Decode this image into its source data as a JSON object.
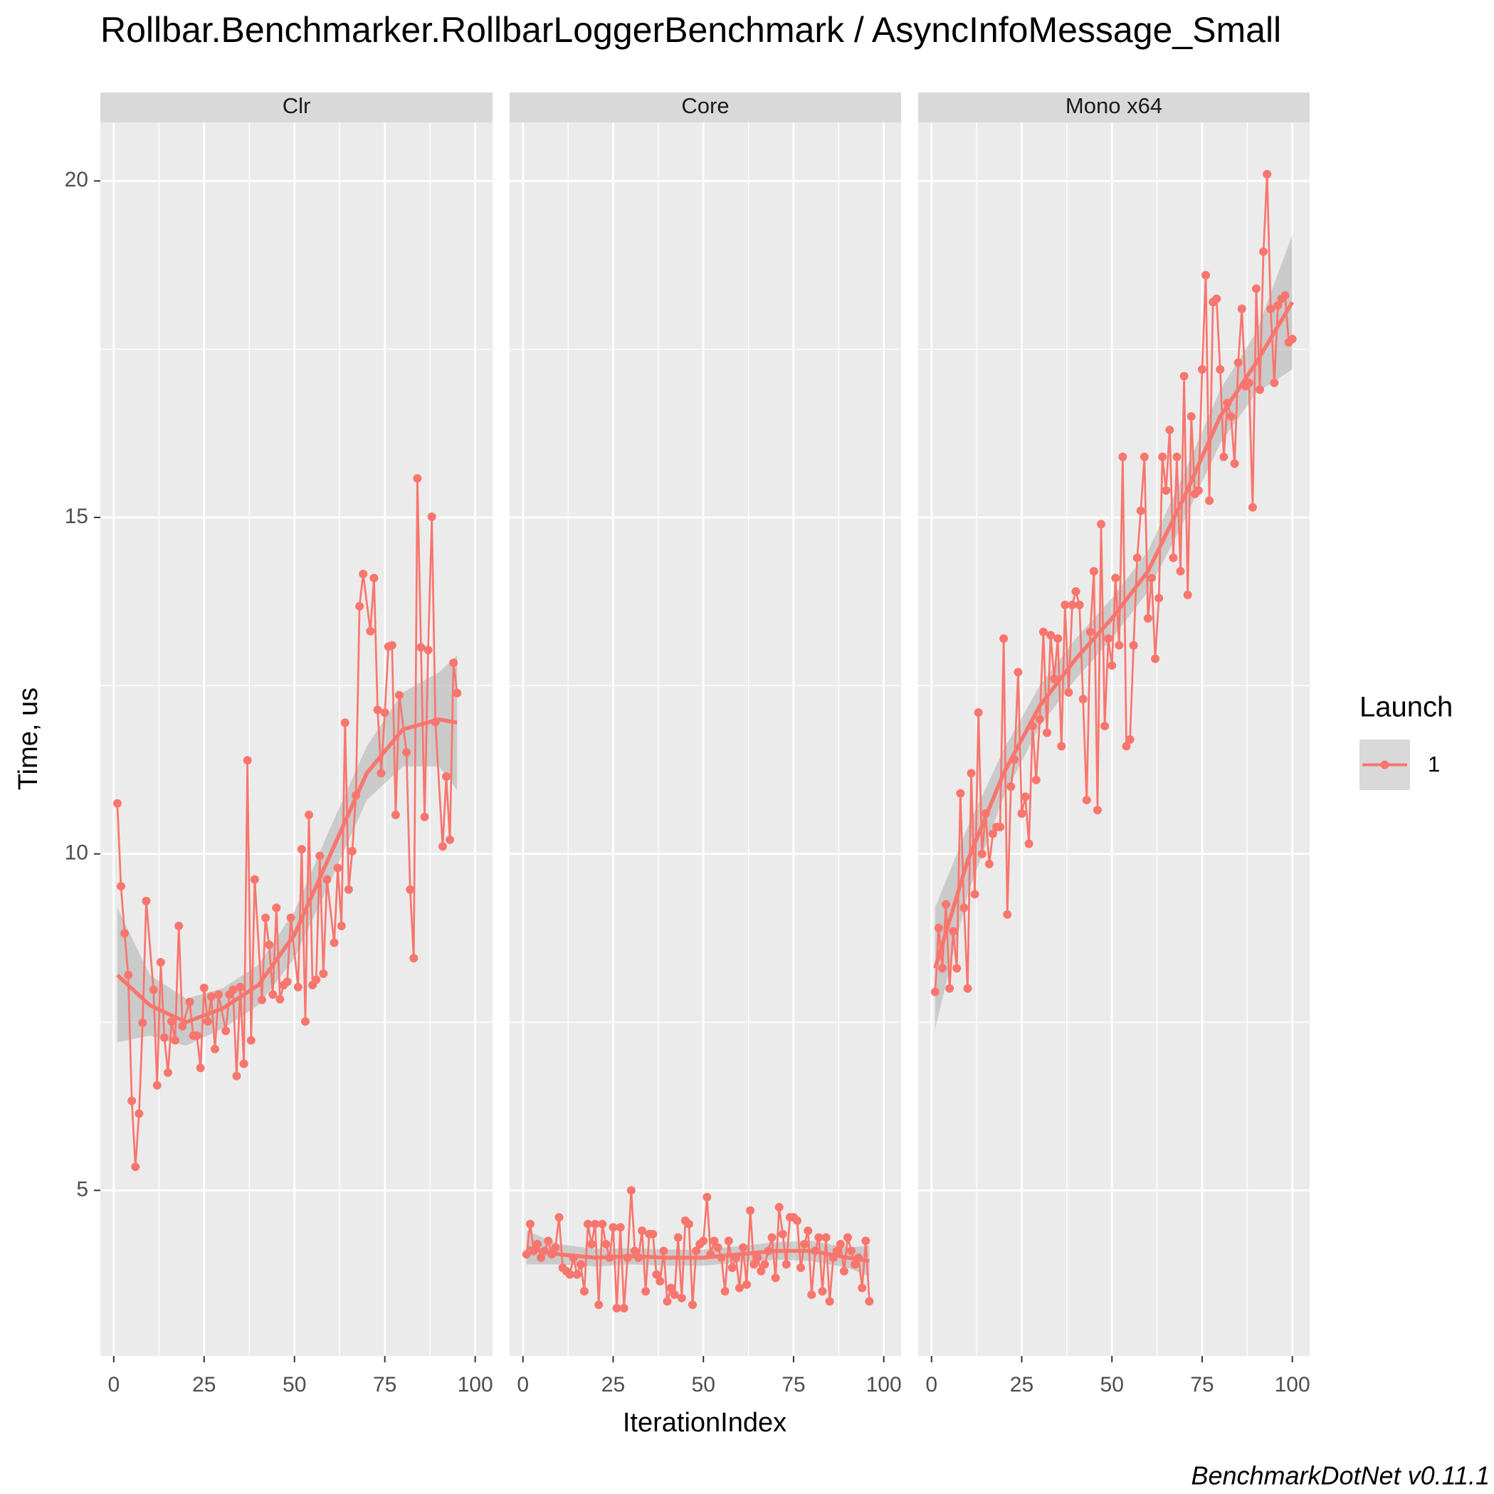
{
  "chart_data": {
    "type": "line",
    "title": "Rollbar.Benchmarker.RollbarLoggerBenchmark / AsyncInfoMessage_Small",
    "x_label": "IterationIndex",
    "y_label": "Time, us",
    "legend_title": "Launch",
    "series_name": "1",
    "caption": "BenchmarkDotNet v0.11.1",
    "color": "#f8766d",
    "band_color": "#999999",
    "grid": true,
    "xlim": [
      -3.7,
      104.8
    ],
    "xticks": [
      0,
      25,
      50,
      75,
      100
    ],
    "minor_xticks": [
      12.5,
      37.5,
      62.5,
      87.5
    ],
    "ylim": [
      2.54,
      20.87
    ],
    "yticks": [
      5,
      10,
      15,
      20
    ],
    "minor_yticks": [
      7.5,
      12.5,
      17.5
    ],
    "facets": [
      {
        "name": "Clr",
        "x": [
          1,
          2,
          3,
          4,
          5,
          6,
          7,
          8,
          9,
          11,
          12,
          13,
          14,
          15,
          16,
          17,
          18,
          19,
          21,
          22,
          23,
          24,
          25,
          26,
          27,
          28,
          29,
          31,
          32,
          33,
          34,
          35,
          36,
          37,
          38,
          39,
          41,
          42,
          43,
          44,
          45,
          46,
          47,
          48,
          49,
          51,
          52,
          53,
          54,
          55,
          56,
          57,
          58,
          59,
          61,
          62,
          63,
          64,
          65,
          66,
          67,
          68,
          69,
          71,
          72,
          73,
          74,
          75,
          76,
          77,
          78,
          79,
          81,
          82,
          83,
          84,
          85,
          86,
          87,
          88,
          89,
          91,
          92,
          93,
          94,
          95
        ],
        "values": [
          10.75,
          9.52,
          8.82,
          8.2,
          6.33,
          5.35,
          6.14,
          7.49,
          9.3,
          7.98,
          6.56,
          8.39,
          7.27,
          6.75,
          7.51,
          7.23,
          8.93,
          7.44,
          7.8,
          7.3,
          7.3,
          6.82,
          8.01,
          7.51,
          7.88,
          7.1,
          7.91,
          7.37,
          7.91,
          7.98,
          6.7,
          8.02,
          6.88,
          11.39,
          7.23,
          9.62,
          7.83,
          9.05,
          8.65,
          7.91,
          9.2,
          7.84,
          8.05,
          8.1,
          9.05,
          8.02,
          10.07,
          7.51,
          10.58,
          8.05,
          8.13,
          9.97,
          8.22,
          9.62,
          8.68,
          9.79,
          8.93,
          11.95,
          9.47,
          10.04,
          10.87,
          13.68,
          14.16,
          13.31,
          14.1,
          12.14,
          11.2,
          12.1,
          13.08,
          13.1,
          10.58,
          12.36,
          11.51,
          9.47,
          8.45,
          15.58,
          13.07,
          10.55,
          13.03,
          15.01,
          11.96,
          10.11,
          11.15,
          10.21,
          12.84,
          12.39
        ],
        "smooth": {
          "x": [
            1,
            10,
            20,
            30,
            40,
            50,
            60,
            70,
            80,
            90,
            95
          ],
          "values": [
            8.2,
            7.75,
            7.5,
            7.7,
            8.05,
            8.8,
            10.0,
            11.2,
            11.85,
            12.0,
            11.95
          ],
          "lower": [
            7.2,
            7.3,
            7.15,
            7.4,
            7.75,
            8.45,
            9.6,
            10.8,
            11.3,
            11.3,
            10.95
          ],
          "upper": [
            9.2,
            8.2,
            7.85,
            8.0,
            8.35,
            9.15,
            10.4,
            11.6,
            12.4,
            12.7,
            12.95
          ]
        }
      },
      {
        "name": "Core",
        "x": [
          1,
          2,
          3,
          4,
          5,
          6,
          7,
          8,
          9,
          10,
          11,
          12,
          13,
          14,
          15,
          16,
          17,
          18,
          19,
          20,
          21,
          22,
          23,
          24,
          25,
          26,
          27,
          28,
          29,
          30,
          31,
          32,
          33,
          34,
          35,
          36,
          37,
          38,
          39,
          40,
          41,
          42,
          43,
          44,
          45,
          46,
          47,
          48,
          49,
          50,
          51,
          52,
          53,
          54,
          55,
          56,
          57,
          58,
          59,
          60,
          61,
          62,
          63,
          64,
          65,
          66,
          67,
          68,
          69,
          70,
          71,
          72,
          73,
          74,
          75,
          76,
          77,
          78,
          79,
          80,
          81,
          82,
          83,
          84,
          85,
          86,
          87,
          88,
          89,
          90,
          91,
          92,
          93,
          94,
          95,
          96
        ],
        "values": [
          4.05,
          4.5,
          4.1,
          4.2,
          4.0,
          4.1,
          4.25,
          4.05,
          4.15,
          4.6,
          3.85,
          3.8,
          3.75,
          4.0,
          3.75,
          3.9,
          3.5,
          4.5,
          4.2,
          4.5,
          3.3,
          4.5,
          4.2,
          4.0,
          4.45,
          3.25,
          4.45,
          3.25,
          4.0,
          5.0,
          4.1,
          4.0,
          4.4,
          3.5,
          4.35,
          4.35,
          3.75,
          3.65,
          4.1,
          3.35,
          3.55,
          3.45,
          4.3,
          3.4,
          4.55,
          4.5,
          3.3,
          4.1,
          4.2,
          4.25,
          4.9,
          4.05,
          4.25,
          4.15,
          4.0,
          3.5,
          4.25,
          3.85,
          4.0,
          3.55,
          4.15,
          3.6,
          4.7,
          3.9,
          4.0,
          3.8,
          3.9,
          4.1,
          4.3,
          3.7,
          4.75,
          4.35,
          3.9,
          4.6,
          4.6,
          4.55,
          3.85,
          4.2,
          4.4,
          3.45,
          4.1,
          4.3,
          3.5,
          4.3,
          3.35,
          4.0,
          4.1,
          4.2,
          3.8,
          4.3,
          4.1,
          3.9,
          4.0,
          3.55,
          4.25,
          3.35
        ],
        "smooth": {
          "x": [
            1,
            10,
            20,
            30,
            40,
            50,
            60,
            70,
            80,
            90,
            96
          ],
          "values": [
            4.15,
            4.05,
            4.0,
            4.02,
            4.0,
            4.0,
            4.05,
            4.1,
            4.1,
            4.0,
            3.95
          ],
          "lower": [
            3.9,
            3.9,
            3.87,
            3.9,
            3.88,
            3.88,
            3.93,
            3.97,
            3.95,
            3.85,
            3.72
          ],
          "upper": [
            4.4,
            4.2,
            4.13,
            4.14,
            4.12,
            4.12,
            4.17,
            4.23,
            4.25,
            4.15,
            4.18
          ]
        }
      },
      {
        "name": "Mono x64",
        "x": [
          1,
          2,
          3,
          4,
          5,
          6,
          7,
          8,
          9,
          10,
          11,
          12,
          13,
          14,
          15,
          16,
          17,
          18,
          19,
          20,
          21,
          22,
          23,
          24,
          25,
          26,
          27,
          28,
          29,
          30,
          31,
          32,
          33,
          34,
          35,
          36,
          37,
          38,
          39,
          40,
          41,
          42,
          43,
          44,
          45,
          46,
          47,
          48,
          49,
          50,
          51,
          52,
          53,
          54,
          55,
          56,
          57,
          58,
          59,
          60,
          61,
          62,
          63,
          64,
          65,
          66,
          67,
          68,
          69,
          70,
          71,
          72,
          73,
          74,
          75,
          76,
          77,
          78,
          79,
          80,
          81,
          82,
          83,
          84,
          85,
          86,
          87,
          88,
          89,
          90,
          91,
          92,
          93,
          94,
          95,
          96,
          97,
          98,
          99,
          100
        ],
        "values": [
          7.95,
          8.9,
          8.3,
          9.25,
          8.0,
          8.85,
          8.3,
          10.9,
          9.2,
          8.0,
          11.2,
          9.4,
          12.1,
          10.0,
          10.6,
          9.85,
          10.3,
          10.4,
          10.4,
          13.2,
          9.1,
          11.0,
          11.4,
          12.7,
          10.6,
          10.85,
          10.15,
          11.9,
          11.1,
          12.0,
          13.3,
          11.8,
          13.25,
          12.6,
          13.2,
          11.6,
          13.7,
          12.4,
          13.7,
          13.9,
          13.7,
          12.3,
          10.8,
          13.3,
          14.2,
          10.65,
          14.9,
          11.9,
          13.2,
          12.8,
          14.1,
          13.1,
          15.9,
          11.6,
          11.7,
          13.1,
          14.4,
          15.1,
          15.9,
          13.5,
          14.1,
          12.9,
          13.8,
          15.9,
          15.4,
          16.3,
          14.4,
          15.9,
          14.2,
          17.1,
          13.85,
          16.5,
          15.35,
          15.4,
          17.2,
          18.6,
          15.25,
          18.2,
          18.25,
          17.2,
          15.9,
          16.7,
          16.5,
          15.8,
          17.3,
          18.1,
          16.95,
          17.0,
          15.15,
          18.4,
          16.9,
          18.95,
          20.1,
          18.1,
          17.0,
          18.15,
          18.25,
          18.3,
          17.6,
          17.65
        ],
        "smooth": {
          "x": [
            1,
            10,
            20,
            30,
            40,
            50,
            60,
            70,
            80,
            90,
            100
          ],
          "values": [
            8.3,
            9.9,
            11.2,
            12.2,
            12.9,
            13.5,
            14.2,
            15.3,
            16.5,
            17.3,
            18.2
          ],
          "lower": [
            7.4,
            9.4,
            10.85,
            11.9,
            12.6,
            13.2,
            13.9,
            14.95,
            16.1,
            16.85,
            17.2
          ],
          "upper": [
            9.2,
            10.4,
            11.55,
            12.5,
            13.2,
            13.8,
            14.5,
            15.65,
            16.9,
            17.75,
            19.2
          ]
        }
      }
    ]
  }
}
